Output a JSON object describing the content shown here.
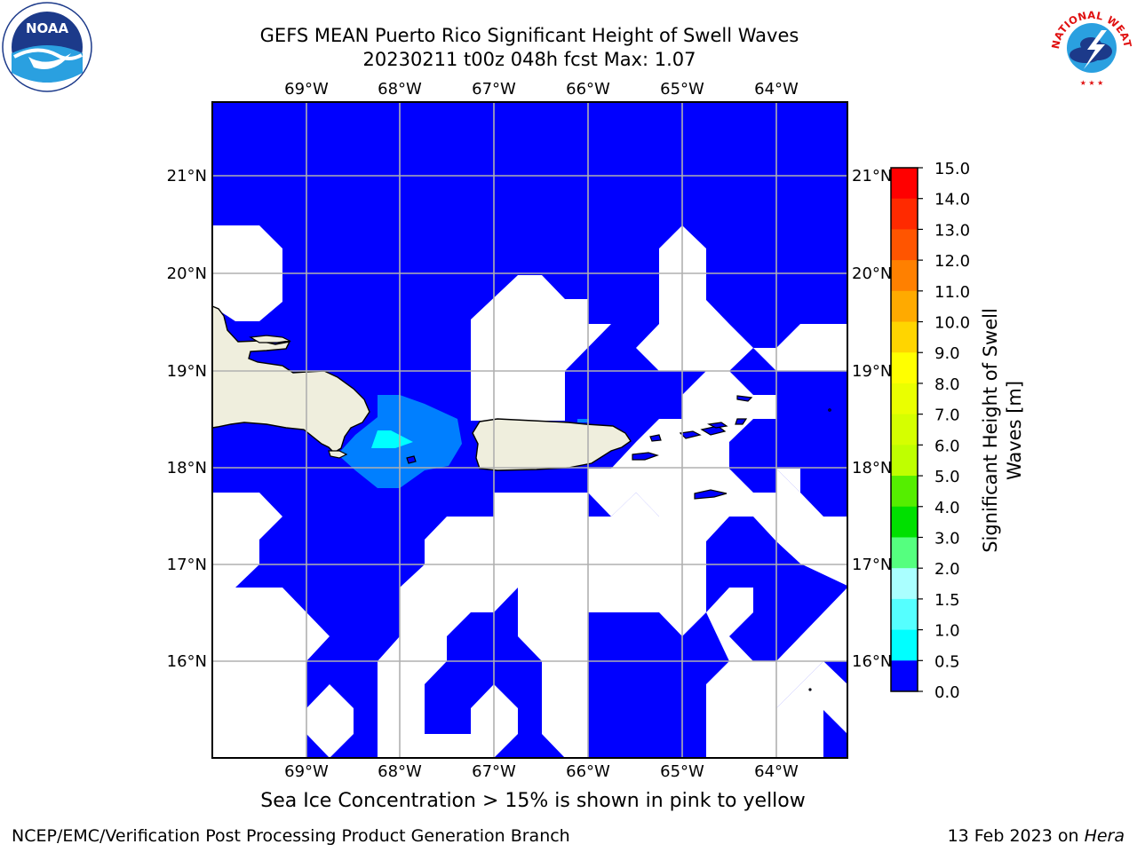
{
  "header": {
    "title_line_1": "GEFS MEAN Puerto Rico Significant Height of Swell Waves",
    "title_line_2": "20230211 t00z 048h fcst   Max: 1.07"
  },
  "logos": {
    "left": {
      "icon": "noaa-logo",
      "text": "NOAA",
      "ring_text": "NATIONAL OCEANIC AND ATMOSPHERIC ADMINISTRATION · U.S. DEPARTMENT OF COMMERCE"
    },
    "right": {
      "icon": "nws-logo",
      "ring_text": "NATIONAL WEATHER SERVICE"
    }
  },
  "map": {
    "lon_ticks": [
      "69°W",
      "68°W",
      "67°W",
      "66°W",
      "65°W",
      "64°W"
    ],
    "lat_ticks": [
      "21°N",
      "20°N",
      "19°N",
      "18°N",
      "17°N",
      "16°N"
    ],
    "lon_range": [
      -70.0,
      -63.25
    ],
    "lat_range": [
      15.0,
      21.75
    ],
    "grid": true,
    "colors": {
      "ocean_low": "#0000ff",
      "band_05_10": "#007fff",
      "band_10_15": "#00ffff",
      "land": "#efeedd",
      "no_data": "#ffffff"
    }
  },
  "colorbar": {
    "label": "Significant Height of Swell Waves [m]",
    "ticks": [
      "15.0",
      "14.0",
      "13.0",
      "12.0",
      "11.0",
      "10.0",
      "9.0",
      "8.0",
      "7.0",
      "6.0",
      "5.0",
      "4.0",
      "3.0",
      "2.0",
      "1.5",
      "1.0",
      "0.5",
      "0.0"
    ],
    "colors": [
      "#ff0000",
      "#ff2a00",
      "#ff5500",
      "#ff8000",
      "#ffaa00",
      "#ffd500",
      "#ffff00",
      "#eaff00",
      "#d5ff00",
      "#bfff00",
      "#55ee00",
      "#00e000",
      "#55ff7f",
      "#aaffff",
      "#55ffff",
      "#00ffff",
      "#007fff",
      "#0000ff"
    ]
  },
  "notes": {
    "ice": "Sea Ice Concentration > 15% is shown in pink to yellow"
  },
  "footer": {
    "left": "NCEP/EMC/Verification Post Processing Product Generation Branch",
    "right_prefix": "13 Feb 2023 on ",
    "right_host": "Hera"
  }
}
